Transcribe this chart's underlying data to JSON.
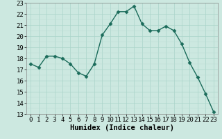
{
  "x": [
    0,
    1,
    2,
    3,
    4,
    5,
    6,
    7,
    8,
    9,
    10,
    11,
    12,
    13,
    14,
    15,
    16,
    17,
    18,
    19,
    20,
    21,
    22,
    23
  ],
  "y": [
    17.5,
    17.2,
    18.2,
    18.2,
    18.0,
    17.5,
    16.7,
    16.4,
    17.5,
    20.1,
    21.1,
    22.2,
    22.2,
    22.7,
    21.1,
    20.5,
    20.5,
    20.9,
    20.5,
    19.3,
    17.6,
    16.3,
    14.8,
    13.2
  ],
  "line_color": "#1a6b5a",
  "marker": "D",
  "marker_size": 2.5,
  "line_width": 1.0,
  "bg_color": "#cce8e0",
  "grid_major_color": "#aad4ca",
  "grid_minor_color": "#bdddd6",
  "xlabel": "Humidex (Indice chaleur)",
  "xlabel_fontsize": 7.5,
  "tick_fontsize": 6.5,
  "xlim": [
    -0.5,
    23.5
  ],
  "ylim": [
    13,
    23
  ],
  "yticks": [
    13,
    14,
    15,
    16,
    17,
    18,
    19,
    20,
    21,
    22,
    23
  ],
  "xticks": [
    0,
    1,
    2,
    3,
    4,
    5,
    6,
    7,
    8,
    9,
    10,
    11,
    12,
    13,
    14,
    15,
    16,
    17,
    18,
    19,
    20,
    21,
    22,
    23
  ]
}
